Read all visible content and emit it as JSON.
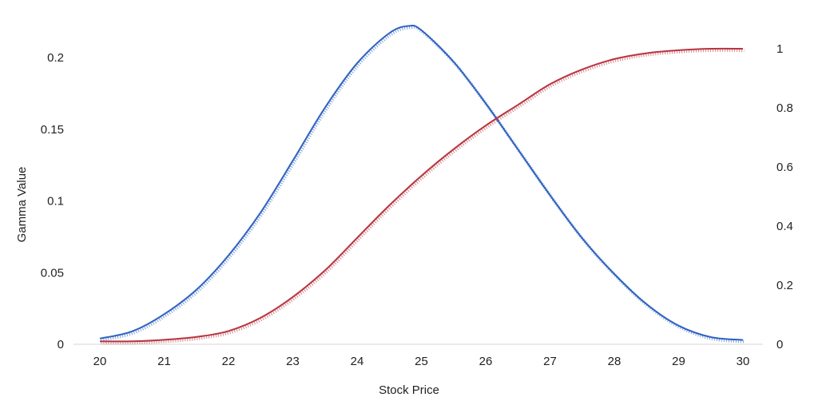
{
  "chart_data": {
    "type": "line",
    "title": "",
    "xlabel": "Stock Price",
    "ylabel": "Gamma Value",
    "y2label": "",
    "xlim": [
      20,
      30
    ],
    "ylim": [
      0,
      0.2
    ],
    "y2lim": [
      0,
      1
    ],
    "grid": false,
    "x_ticks": [
      "20",
      "21",
      "22",
      "23",
      "24",
      "25",
      "26",
      "27",
      "28",
      "29",
      "30"
    ],
    "y_ticks": [
      "0",
      "0.05",
      "0.1",
      "0.15",
      "0.2"
    ],
    "y2_ticks": [
      "0",
      "0.2",
      "0.4",
      "0.6",
      "0.8",
      "1"
    ],
    "series": [
      {
        "axis": "left",
        "color": "#2e62c0",
        "x": [
          20,
          20.5,
          21,
          21.5,
          22,
          22.5,
          23,
          23.5,
          24,
          24.5,
          24.8,
          25,
          25.5,
          26,
          26.5,
          27,
          27.5,
          28,
          28.5,
          29,
          29.5,
          30
        ],
        "values": [
          0.004,
          0.009,
          0.021,
          0.038,
          0.062,
          0.092,
          0.128,
          0.165,
          0.196,
          0.217,
          0.222,
          0.219,
          0.197,
          0.168,
          0.136,
          0.104,
          0.074,
          0.049,
          0.028,
          0.013,
          0.005,
          0.003
        ]
      },
      {
        "axis": "right",
        "color": "#b8353f",
        "x": [
          20,
          20.5,
          21,
          21.5,
          22,
          22.5,
          23,
          23.5,
          24,
          24.5,
          25,
          25.5,
          26,
          26.5,
          27,
          27.5,
          28,
          28.5,
          29,
          29.5,
          30
        ],
        "values": [
          0.01,
          0.01,
          0.015,
          0.025,
          0.045,
          0.09,
          0.16,
          0.25,
          0.36,
          0.47,
          0.57,
          0.66,
          0.74,
          0.81,
          0.88,
          0.93,
          0.965,
          0.985,
          0.995,
          1.0,
          1.0
        ]
      }
    ]
  }
}
